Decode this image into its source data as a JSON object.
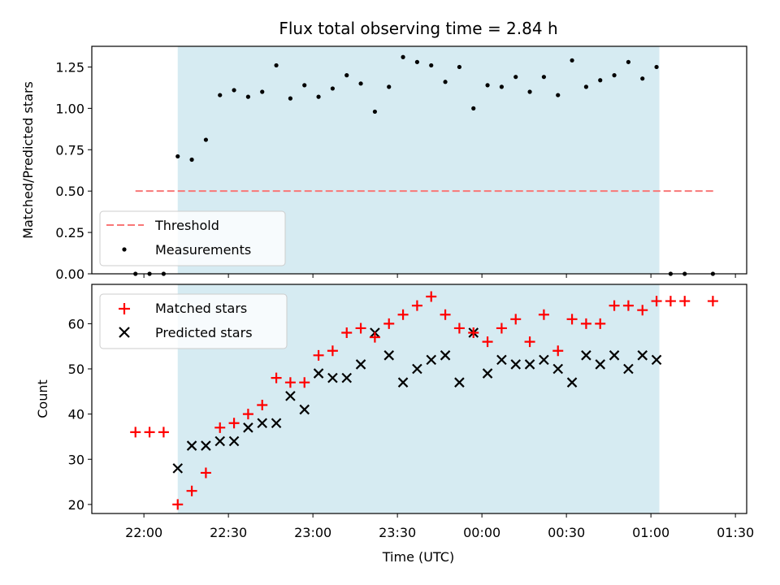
{
  "chart_data": [
    {
      "type": "scatter",
      "title": "Flux total observing time = 2.84 h",
      "xlabel": "",
      "ylabel": "Matched/Predicted stars",
      "ylim": [
        0,
        1.375
      ],
      "yticks": [
        "0.00",
        "0.25",
        "0.50",
        "0.75",
        "1.00",
        "1.25"
      ],
      "shaded_span": {
        "start": "22:12",
        "end": "01:03",
        "color": "#add8e6"
      },
      "threshold": {
        "name": "Threshold",
        "value": 0.5,
        "x_start": "21:57",
        "x_end": "01:23",
        "color": "#f87777"
      },
      "series": [
        {
          "name": "Measurements",
          "color": "#000000",
          "points": [
            [
              "21:57",
              0.0
            ],
            [
              "22:02",
              0.0
            ],
            [
              "22:07",
              0.0
            ],
            [
              "22:12",
              0.71
            ],
            [
              "22:17",
              0.69
            ],
            [
              "22:22",
              0.81
            ],
            [
              "22:27",
              1.08
            ],
            [
              "22:32",
              1.11
            ],
            [
              "22:37",
              1.07
            ],
            [
              "22:42",
              1.1
            ],
            [
              "22:47",
              1.26
            ],
            [
              "22:52",
              1.06
            ],
            [
              "22:57",
              1.14
            ],
            [
              "23:02",
              1.07
            ],
            [
              "23:07",
              1.12
            ],
            [
              "23:12",
              1.2
            ],
            [
              "23:17",
              1.15
            ],
            [
              "23:22",
              0.98
            ],
            [
              "23:27",
              1.13
            ],
            [
              "23:32",
              1.31
            ],
            [
              "23:37",
              1.28
            ],
            [
              "23:42",
              1.26
            ],
            [
              "23:47",
              1.16
            ],
            [
              "23:52",
              1.25
            ],
            [
              "23:57",
              1.0
            ],
            [
              "00:02",
              1.14
            ],
            [
              "00:07",
              1.13
            ],
            [
              "00:12",
              1.19
            ],
            [
              "00:17",
              1.1
            ],
            [
              "00:22",
              1.19
            ],
            [
              "00:27",
              1.08
            ],
            [
              "00:32",
              1.29
            ],
            [
              "00:37",
              1.13
            ],
            [
              "00:42",
              1.17
            ],
            [
              "00:47",
              1.2
            ],
            [
              "00:52",
              1.28
            ],
            [
              "00:57",
              1.18
            ],
            [
              "01:02",
              1.25
            ],
            [
              "01:07",
              0.0
            ],
            [
              "01:12",
              0.0
            ],
            [
              "01:22",
              0.0
            ]
          ]
        }
      ],
      "legend": [
        "Threshold",
        "Measurements"
      ],
      "legend_position": "lower-left"
    },
    {
      "type": "scatter",
      "xlabel": "Time (UTC)",
      "ylabel": "Count",
      "ylim": [
        18,
        68.7
      ],
      "yticks": [
        "20",
        "30",
        "40",
        "50",
        "60"
      ],
      "xticks": [
        "22:00",
        "22:30",
        "23:00",
        "23:30",
        "00:00",
        "00:30",
        "01:00",
        "01:30"
      ],
      "shaded_span": {
        "start": "22:12",
        "end": "01:03",
        "color": "#add8e6"
      },
      "series": [
        {
          "name": "Matched stars",
          "marker": "plus",
          "color": "#ff0000",
          "points": [
            [
              "21:57",
              36
            ],
            [
              "22:02",
              36
            ],
            [
              "22:07",
              36
            ],
            [
              "22:12",
              20
            ],
            [
              "22:17",
              23
            ],
            [
              "22:22",
              27
            ],
            [
              "22:27",
              37
            ],
            [
              "22:32",
              38
            ],
            [
              "22:37",
              40
            ],
            [
              "22:42",
              42
            ],
            [
              "22:47",
              48
            ],
            [
              "22:52",
              47
            ],
            [
              "22:57",
              47
            ],
            [
              "23:02",
              53
            ],
            [
              "23:07",
              54
            ],
            [
              "23:12",
              58
            ],
            [
              "23:17",
              59
            ],
            [
              "23:22",
              57
            ],
            [
              "23:27",
              60
            ],
            [
              "23:32",
              62
            ],
            [
              "23:37",
              64
            ],
            [
              "23:42",
              66
            ],
            [
              "23:47",
              62
            ],
            [
              "23:52",
              59
            ],
            [
              "23:57",
              58
            ],
            [
              "00:02",
              56
            ],
            [
              "00:07",
              59
            ],
            [
              "00:12",
              61
            ],
            [
              "00:17",
              56
            ],
            [
              "00:22",
              62
            ],
            [
              "00:27",
              54
            ],
            [
              "00:32",
              61
            ],
            [
              "00:37",
              60
            ],
            [
              "00:42",
              60
            ],
            [
              "00:47",
              64
            ],
            [
              "00:52",
              64
            ],
            [
              "00:57",
              63
            ],
            [
              "01:02",
              65
            ],
            [
              "01:07",
              65
            ],
            [
              "01:12",
              65
            ],
            [
              "01:22",
              65
            ]
          ]
        },
        {
          "name": "Predicted stars",
          "marker": "x",
          "color": "#000000",
          "points": [
            [
              "22:12",
              28
            ],
            [
              "22:17",
              33
            ],
            [
              "22:22",
              33
            ],
            [
              "22:27",
              34
            ],
            [
              "22:32",
              34
            ],
            [
              "22:37",
              37
            ],
            [
              "22:42",
              38
            ],
            [
              "22:47",
              38
            ],
            [
              "22:52",
              44
            ],
            [
              "22:57",
              41
            ],
            [
              "23:02",
              49
            ],
            [
              "23:07",
              48
            ],
            [
              "23:12",
              48
            ],
            [
              "23:17",
              51
            ],
            [
              "23:22",
              58
            ],
            [
              "23:27",
              53
            ],
            [
              "23:32",
              47
            ],
            [
              "23:37",
              50
            ],
            [
              "23:42",
              52
            ],
            [
              "23:47",
              53
            ],
            [
              "23:52",
              47
            ],
            [
              "23:57",
              58
            ],
            [
              "00:02",
              49
            ],
            [
              "00:07",
              52
            ],
            [
              "00:12",
              51
            ],
            [
              "00:17",
              51
            ],
            [
              "00:22",
              52
            ],
            [
              "00:27",
              50
            ],
            [
              "00:32",
              47
            ],
            [
              "00:37",
              53
            ],
            [
              "00:42",
              51
            ],
            [
              "00:47",
              53
            ],
            [
              "00:52",
              50
            ],
            [
              "00:57",
              53
            ],
            [
              "01:02",
              52
            ]
          ]
        }
      ],
      "legend": [
        "Matched stars",
        "Predicted stars"
      ],
      "legend_position": "top-left"
    }
  ]
}
